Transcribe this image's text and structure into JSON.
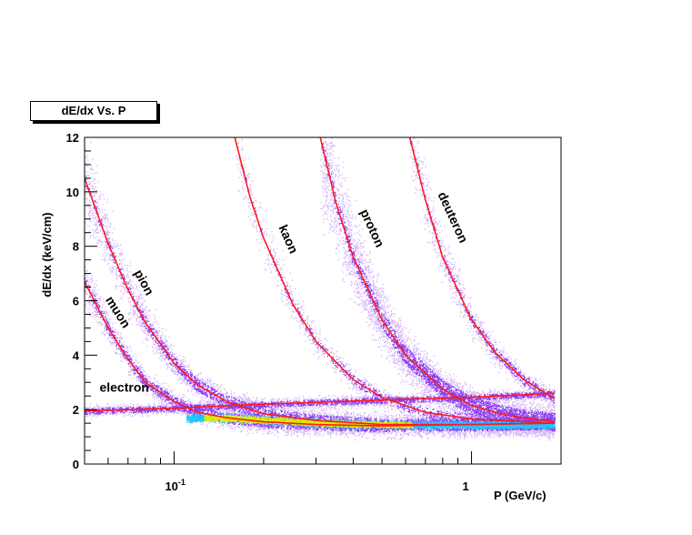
{
  "chart_data": {
    "type": "scatter",
    "title": "dE/dx Vs. P",
    "xlabel": "P (GeV/c)",
    "ylabel": "dE/dx (keV/cm)",
    "x_scale": "log",
    "xlim": [
      0.05,
      2.0
    ],
    "ylim": [
      0,
      12
    ],
    "x_ticks": [
      {
        "value": 0.1,
        "base": "10",
        "exp": "-1"
      },
      {
        "value": 1,
        "base": "1",
        "exp": ""
      }
    ],
    "y_ticks": [
      0,
      2,
      4,
      6,
      8,
      10,
      12
    ],
    "grid": false,
    "legend": "none",
    "colors": {
      "curve": "#ff1a1a",
      "density_low": "#d8b8f8",
      "density_mid": "#8a3cf0",
      "density_high": "#1ec8ff",
      "density_peak": "#d4f000"
    },
    "series": [
      {
        "name": "electron",
        "label_x": 0.068,
        "label_y": 2.65,
        "points": [
          [
            0.05,
            1.95
          ],
          [
            0.1,
            2.05
          ],
          [
            0.2,
            2.2
          ],
          [
            0.5,
            2.35
          ],
          [
            1.0,
            2.45
          ],
          [
            1.9,
            2.6
          ]
        ]
      },
      {
        "name": "muon",
        "label_x": 0.063,
        "label_y": 5.5,
        "points": [
          [
            0.05,
            6.7
          ],
          [
            0.06,
            5.0
          ],
          [
            0.07,
            3.85
          ],
          [
            0.08,
            3.0
          ],
          [
            0.1,
            2.3
          ],
          [
            0.12,
            1.9
          ],
          [
            0.15,
            1.7
          ],
          [
            0.2,
            1.55
          ],
          [
            0.3,
            1.45
          ],
          [
            0.5,
            1.4
          ],
          [
            1.0,
            1.45
          ],
          [
            1.9,
            1.5
          ]
        ]
      },
      {
        "name": "pion",
        "label_x": 0.077,
        "label_y": 6.6,
        "points": [
          [
            0.05,
            10.5
          ],
          [
            0.06,
            8.1
          ],
          [
            0.07,
            6.4
          ],
          [
            0.08,
            5.2
          ],
          [
            0.1,
            3.7
          ],
          [
            0.12,
            2.9
          ],
          [
            0.15,
            2.3
          ],
          [
            0.2,
            1.85
          ],
          [
            0.3,
            1.6
          ],
          [
            0.5,
            1.45
          ],
          [
            1.0,
            1.45
          ],
          [
            1.9,
            1.5
          ]
        ]
      },
      {
        "name": "kaon",
        "label_x": 0.235,
        "label_y": 8.2,
        "points": [
          [
            0.16,
            12.0
          ],
          [
            0.18,
            9.8
          ],
          [
            0.2,
            8.3
          ],
          [
            0.25,
            5.9
          ],
          [
            0.3,
            4.5
          ],
          [
            0.4,
            3.1
          ],
          [
            0.5,
            2.45
          ],
          [
            0.7,
            1.9
          ],
          [
            1.0,
            1.65
          ],
          [
            1.9,
            1.5
          ]
        ]
      },
      {
        "name": "proton",
        "label_x": 0.45,
        "label_y": 8.6,
        "points": [
          [
            0.31,
            12.0
          ],
          [
            0.35,
            9.6
          ],
          [
            0.4,
            7.6
          ],
          [
            0.5,
            5.3
          ],
          [
            0.6,
            4.0
          ],
          [
            0.8,
            2.75
          ],
          [
            1.0,
            2.15
          ],
          [
            1.3,
            1.8
          ],
          [
            1.9,
            1.55
          ]
        ]
      },
      {
        "name": "deuteron",
        "label_x": 0.84,
        "label_y": 9.0,
        "points": [
          [
            0.62,
            12.0
          ],
          [
            0.7,
            9.7
          ],
          [
            0.8,
            7.6
          ],
          [
            1.0,
            5.3
          ],
          [
            1.2,
            4.1
          ],
          [
            1.5,
            3.1
          ],
          [
            1.9,
            2.4
          ]
        ]
      }
    ]
  }
}
